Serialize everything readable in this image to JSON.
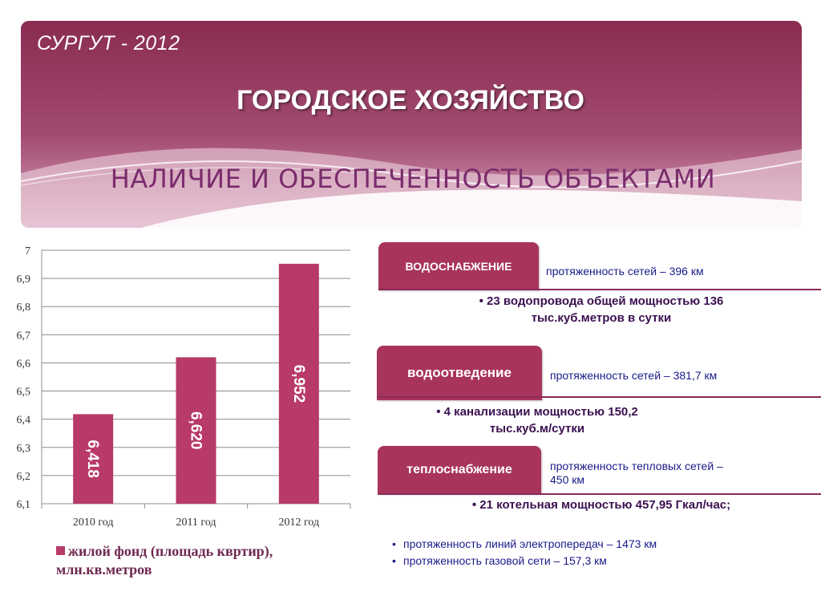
{
  "header": {
    "city": "СУРГУТ - 2012",
    "title": "ГОРОДСКОЕ ХОЗЯЙСТВО",
    "subtitle": "НАЛИЧИЕ И ОБЕСПЕЧЕННОСТЬ ОБЪЕКТАМИ"
  },
  "colors": {
    "banner": "#9b3a5e",
    "bar": "#b83a68",
    "tag": "#a8345c",
    "accent_text": "#1a1a8a"
  },
  "chart_data": {
    "type": "bar",
    "categories": [
      "2010 год",
      "2011 год",
      "2012 год"
    ],
    "series": [
      {
        "name": "жилой фонд (площадь квртир), млн.кв.метров",
        "values": [
          6.418,
          6.62,
          6.952
        ]
      }
    ],
    "data_labels": [
      "6,418",
      "6,620",
      "6,952"
    ],
    "ylim": [
      6.1,
      7
    ],
    "yticks": [
      "6,1",
      "6,2",
      "6,3",
      "6,4",
      "6,5",
      "6,6",
      "6,7",
      "6,8",
      "6,9",
      "7"
    ],
    "grid": true,
    "legend_position": "bottom"
  },
  "legend": {
    "line1": "жилой фонд (площадь квртир),",
    "line2": "млн.кв.метров"
  },
  "utilities": {
    "water_supply": {
      "label": "водоснабжение",
      "network": "протяженность сетей – 396 км",
      "detail_1": "• 23 водопровода общей мощностью 136",
      "detail_2": "тыс.куб.метров в сутки"
    },
    "sewerage": {
      "label": "водоотведение",
      "network": "протяженность сетей – 381,7 км",
      "detail_1": "• 4 канализации мощностью 150,2",
      "detail_2": "тыс.куб.м/сутки"
    },
    "heating": {
      "label": "теплоснабжение",
      "network_1": "протяженность тепловых сетей –",
      "network_2": "450 км",
      "detail": "• 21 котельная мощностью 457,95 Гкал/час;"
    },
    "other": {
      "power_lines": "протяженность линий электропередач – 1473 км",
      "gas": "протяженность газовой сети – 157,3 км"
    }
  }
}
